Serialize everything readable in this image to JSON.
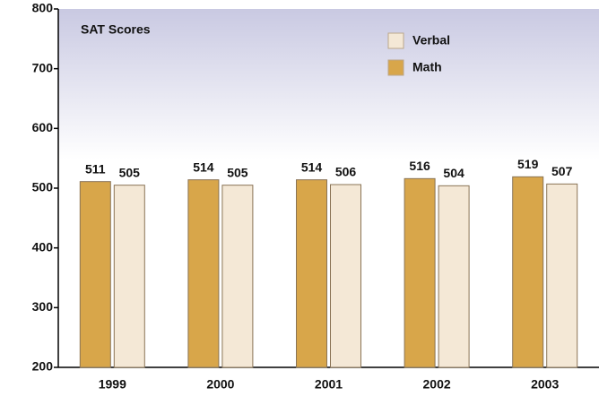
{
  "chart_data": {
    "type": "bar",
    "title": "SAT Scores",
    "categories": [
      "1999",
      "2000",
      "2001",
      "2002",
      "2003"
    ],
    "series": [
      {
        "name": "Verbal",
        "color": "#f4e8d6",
        "values": [
          505,
          505,
          506,
          504,
          507
        ]
      },
      {
        "name": "Math",
        "color": "#d8a64a",
        "values": [
          511,
          514,
          514,
          516,
          519
        ]
      }
    ],
    "ylim": [
      200,
      800
    ],
    "yticks": [
      200,
      300,
      400,
      500,
      600,
      700,
      800
    ],
    "grid": false,
    "legend": "top-right"
  }
}
